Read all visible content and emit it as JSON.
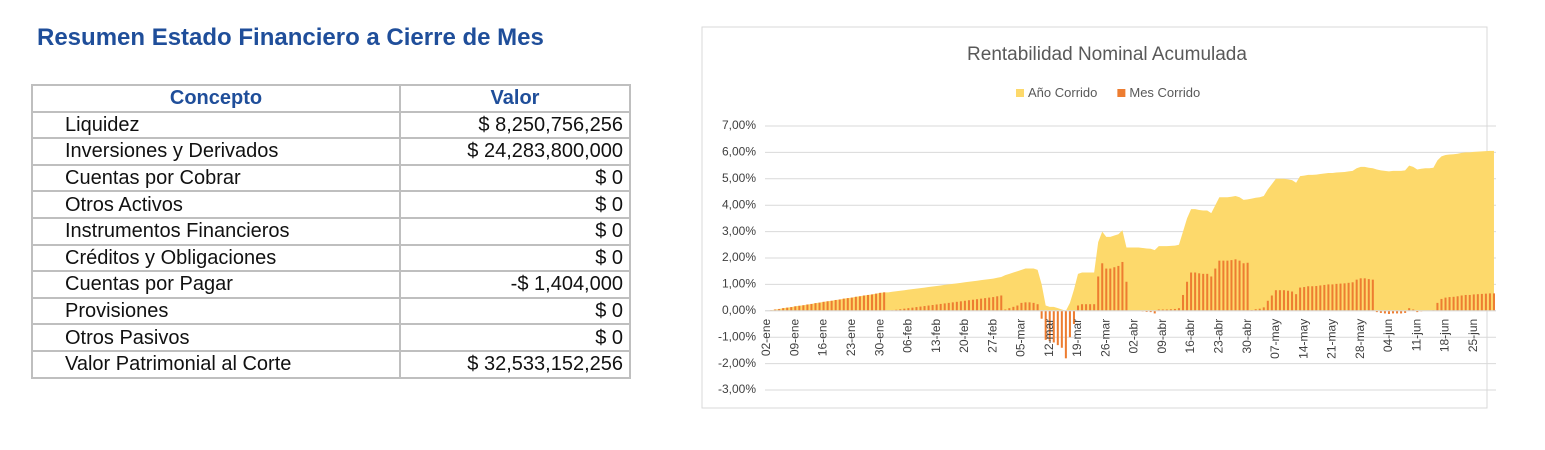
{
  "header": {
    "title": "Resumen Estado Financiero a Cierre de Mes"
  },
  "table": {
    "columns": [
      "Concepto",
      "Valor"
    ],
    "rows": [
      [
        "Liquidez",
        "$ 8,250,756,256"
      ],
      [
        "Inversiones y Derivados",
        "$ 24,283,800,000"
      ],
      [
        "Cuentas por Cobrar",
        "$ 0"
      ],
      [
        "Otros Activos",
        "$ 0"
      ],
      [
        "Instrumentos Financieros",
        "$ 0"
      ],
      [
        "Créditos y Obligaciones",
        "$ 0"
      ],
      [
        "Cuentas por Pagar",
        "-$ 1,404,000"
      ],
      [
        "Provisiones",
        "$ 0"
      ],
      [
        "Otros Pasivos",
        "$ 0"
      ],
      [
        "Valor Patrimonial al Corte",
        "$ 32,533,152,256"
      ]
    ]
  },
  "chart_data": {
    "type": "area_bar",
    "title": "Rentabilidad Nominal Acumulada",
    "legend": "top",
    "grid": true,
    "categories": [
      "02-ene",
      null,
      null,
      null,
      null,
      null,
      null,
      "09-ene",
      null,
      null,
      null,
      null,
      null,
      null,
      "16-ene",
      null,
      null,
      null,
      null,
      null,
      null,
      "23-ene",
      null,
      null,
      null,
      null,
      null,
      null,
      "30-ene",
      null,
      null,
      null,
      null,
      null,
      null,
      "06-feb",
      null,
      null,
      null,
      null,
      null,
      null,
      "13-feb",
      null,
      null,
      null,
      null,
      null,
      null,
      "20-feb",
      null,
      null,
      null,
      null,
      null,
      null,
      "27-feb",
      null,
      null,
      null,
      null,
      null,
      null,
      "05-mar",
      null,
      null,
      null,
      null,
      null,
      null,
      "12-mar",
      null,
      null,
      null,
      null,
      null,
      null,
      "19-mar",
      null,
      null,
      null,
      null,
      null,
      null,
      "26-mar",
      null,
      null,
      null,
      null,
      null,
      null,
      "02-abr",
      null,
      null,
      null,
      null,
      null,
      null,
      "09-abr",
      null,
      null,
      null,
      null,
      null,
      null,
      "16-abr",
      null,
      null,
      null,
      null,
      null,
      null,
      "23-abr",
      null,
      null,
      null,
      null,
      null,
      null,
      "30-abr",
      null,
      null,
      null,
      null,
      null,
      null,
      "07-may",
      null,
      null,
      null,
      null,
      null,
      null,
      "14-may",
      null,
      null,
      null,
      null,
      null,
      null,
      "21-may",
      null,
      null,
      null,
      null,
      null,
      null,
      "28-may",
      null,
      null,
      null,
      null,
      null,
      null,
      "04-jun",
      null,
      null,
      null,
      null,
      null,
      null,
      "11-jun",
      null,
      null,
      null,
      null,
      null,
      null,
      "18-jun",
      null,
      null,
      null,
      null,
      null,
      null,
      "25-jun",
      null,
      null,
      null,
      null,
      null
    ],
    "series": [
      {
        "name": "Año Corrido",
        "kind": "area",
        "color": "#fdd96b",
        "values": [
          0,
          0.02,
          0.05,
          0.07,
          0.1,
          0.12,
          0.14,
          0.17,
          0.19,
          0.21,
          0.24,
          0.26,
          0.29,
          0.31,
          0.34,
          0.36,
          0.38,
          0.41,
          0.43,
          0.46,
          0.48,
          0.5,
          0.53,
          0.55,
          0.58,
          0.6,
          0.62,
          0.65,
          0.68,
          0.7,
          0.7,
          0.72,
          0.74,
          0.76,
          0.78,
          0.8,
          0.82,
          0.84,
          0.86,
          0.88,
          0.9,
          0.92,
          0.94,
          0.96,
          0.98,
          1.0,
          1.02,
          1.04,
          1.06,
          1.08,
          1.1,
          1.12,
          1.14,
          1.16,
          1.18,
          1.2,
          1.22,
          1.25,
          1.28,
          1.35,
          1.4,
          1.45,
          1.5,
          1.55,
          1.6,
          1.6,
          1.6,
          1.55,
          1.0,
          0.2,
          0.15,
          0.15,
          0.1,
          0.05,
          0.0,
          0.3,
          0.8,
          1.4,
          1.45,
          1.45,
          1.45,
          1.45,
          2.6,
          3.0,
          2.8,
          2.8,
          2.85,
          2.9,
          3.05,
          2.4,
          2.4,
          2.4,
          2.4,
          2.38,
          2.36,
          2.35,
          2.3,
          2.45,
          2.45,
          2.45,
          2.46,
          2.47,
          2.5,
          3.0,
          3.5,
          3.85,
          3.85,
          3.82,
          3.8,
          3.8,
          3.7,
          4.0,
          4.3,
          4.3,
          4.3,
          4.32,
          4.35,
          4.3,
          4.2,
          4.22,
          4.25,
          4.28,
          4.3,
          4.35,
          4.6,
          4.8,
          5.0,
          5.0,
          5.0,
          4.98,
          4.95,
          4.85,
          5.1,
          5.12,
          5.15,
          5.15,
          5.16,
          5.18,
          5.2,
          5.22,
          5.22,
          5.24,
          5.25,
          5.26,
          5.28,
          5.3,
          5.4,
          5.45,
          5.45,
          5.42,
          5.4,
          5.35,
          5.32,
          5.3,
          5.28,
          5.3,
          5.3,
          5.3,
          5.32,
          5.5,
          5.45,
          5.35,
          5.38,
          5.4,
          5.4,
          5.42,
          5.7,
          5.85,
          5.9,
          5.92,
          5.93,
          5.95,
          5.98,
          6.0,
          6.0,
          6.02,
          6.03,
          6.04,
          6.05,
          6.06,
          6.06
        ]
      },
      {
        "name": "Mes Corrido",
        "kind": "bar",
        "color": "#ed7d31",
        "values": [
          0,
          0.02,
          0.05,
          0.07,
          0.1,
          0.12,
          0.14,
          0.17,
          0.19,
          0.21,
          0.24,
          0.26,
          0.29,
          0.31,
          0.34,
          0.36,
          0.38,
          0.41,
          0.43,
          0.46,
          0.48,
          0.5,
          0.53,
          0.55,
          0.58,
          0.6,
          0.62,
          0.65,
          0.68,
          0.7,
          0,
          0.02,
          0.04,
          0.06,
          0.08,
          0.1,
          0.12,
          0.14,
          0.16,
          0.18,
          0.2,
          0.22,
          0.24,
          0.26,
          0.28,
          0.3,
          0.32,
          0.34,
          0.36,
          0.38,
          0.4,
          0.42,
          0.44,
          0.46,
          0.48,
          0.5,
          0.52,
          0.55,
          0.58,
          0.05,
          0.1,
          0.15,
          0.2,
          0.3,
          0.32,
          0.32,
          0.3,
          0.25,
          -0.3,
          -1.1,
          -1.15,
          -1.2,
          -1.3,
          -1.4,
          -1.8,
          -1.0,
          -0.5,
          0.2,
          0.25,
          0.25,
          0.25,
          0.25,
          1.3,
          1.8,
          1.6,
          1.6,
          1.65,
          1.7,
          1.85,
          1.1,
          0,
          0,
          0,
          -0.02,
          -0.04,
          -0.05,
          -0.1,
          0.05,
          0.05,
          0.05,
          0.06,
          0.07,
          0.1,
          0.6,
          1.1,
          1.45,
          1.45,
          1.42,
          1.4,
          1.4,
          1.3,
          1.6,
          1.9,
          1.9,
          1.9,
          1.92,
          1.95,
          1.9,
          1.8,
          1.82,
          0.03,
          0.06,
          0.08,
          0.13,
          0.38,
          0.58,
          0.78,
          0.78,
          0.78,
          0.76,
          0.73,
          0.63,
          0.88,
          0.9,
          0.93,
          0.93,
          0.94,
          0.96,
          0.98,
          1.0,
          1.0,
          1.02,
          1.03,
          1.04,
          1.06,
          1.08,
          1.18,
          1.23,
          1.23,
          1.2,
          1.18,
          -0.05,
          -0.08,
          -0.1,
          -0.12,
          -0.1,
          -0.1,
          -0.1,
          -0.08,
          0.1,
          0.05,
          -0.05,
          -0.02,
          0,
          0,
          0.02,
          0.3,
          0.45,
          0.5,
          0.52,
          0.53,
          0.55,
          0.58,
          0.6,
          0.6,
          0.62,
          0.63,
          0.64,
          0.65,
          0.66,
          0.66
        ]
      }
    ],
    "ylim": [
      -3,
      7
    ],
    "yticks": [
      {
        "value": -3,
        "label": "-3,00%"
      },
      {
        "value": -2,
        "label": "-2,00%"
      },
      {
        "value": -1,
        "label": "-1,00%"
      },
      {
        "value": 0,
        "label": "0,00%"
      },
      {
        "value": 1,
        "label": "1,00%"
      },
      {
        "value": 2,
        "label": "2,00%"
      },
      {
        "value": 3,
        "label": "3,00%"
      },
      {
        "value": 4,
        "label": "4,00%"
      },
      {
        "value": 5,
        "label": "5,00%"
      },
      {
        "value": 6,
        "label": "6,00%"
      },
      {
        "value": 7,
        "label": "7,00%"
      }
    ]
  }
}
